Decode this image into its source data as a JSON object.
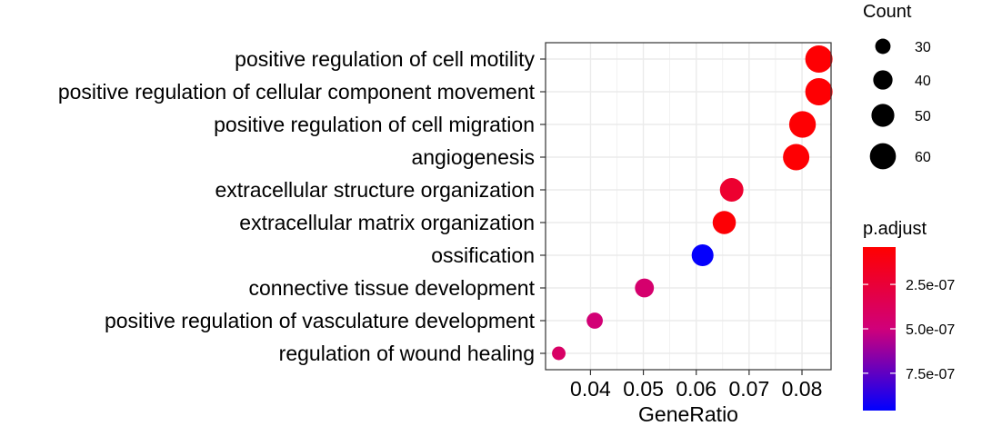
{
  "chart_data": {
    "type": "scatter",
    "title": "",
    "xlabel": "GeneRatio",
    "ylabel": "",
    "xlim": [
      0.0315,
      0.0855
    ],
    "x_ticks": [
      0.04,
      0.05,
      0.06,
      0.07,
      0.08
    ],
    "x_tick_labels": [
      "0.04",
      "0.05",
      "0.06",
      "0.07",
      "0.08"
    ],
    "grid": true,
    "categories": [
      "positive regulation of cell motility",
      "positive regulation of cellular component movement",
      "positive regulation of cell migration",
      "angiogenesis",
      "extracellular structure organization",
      "extracellular matrix organization",
      "ossification",
      "connective tissue development",
      "positive regulation of vasculature development",
      "regulation of wound healing"
    ],
    "points": [
      {
        "term": "positive regulation of cell motility",
        "gene_ratio": 0.0832,
        "count": 64,
        "p_adjust": 5e-08
      },
      {
        "term": "positive regulation of cellular component movement",
        "gene_ratio": 0.0832,
        "count": 64,
        "p_adjust": 5e-08
      },
      {
        "term": "positive regulation of cell migration",
        "gene_ratio": 0.0801,
        "count": 62,
        "p_adjust": 5e-08
      },
      {
        "term": "angiogenesis",
        "gene_ratio": 0.0789,
        "count": 61,
        "p_adjust": 5e-08
      },
      {
        "term": "extracellular structure organization",
        "gene_ratio": 0.0667,
        "count": 52,
        "p_adjust": 2.2e-07
      },
      {
        "term": "extracellular matrix organization",
        "gene_ratio": 0.0653,
        "count": 51,
        "p_adjust": 6e-08
      },
      {
        "term": "ossification",
        "gene_ratio": 0.0612,
        "count": 47,
        "p_adjust": 9.5e-07
      },
      {
        "term": "connective tissue development",
        "gene_ratio": 0.0502,
        "count": 39,
        "p_adjust": 4.5e-07
      },
      {
        "term": "positive regulation of vasculature development",
        "gene_ratio": 0.0408,
        "count": 32,
        "p_adjust": 4.8e-07
      },
      {
        "term": "regulation of wound healing",
        "gene_ratio": 0.034,
        "count": 26,
        "p_adjust": 4.2e-07
      }
    ],
    "legend": {
      "placement": "right",
      "size_title": "Count",
      "size_values": [
        30,
        40,
        50,
        60
      ],
      "size_labels": [
        "30",
        "40",
        "50",
        "60"
      ],
      "color_title": "p.adjust",
      "color_domain": [
        4e-08,
        9.6e-07
      ],
      "color_ticks": [
        2.5e-07,
        5e-07,
        7.5e-07
      ],
      "color_tick_labels": [
        "2.5e-07",
        "5.0e-07",
        "7.5e-07"
      ],
      "color_low": "#ff0000",
      "color_high": "#0000ff"
    },
    "colors": {
      "panel_border": "#333333",
      "grid": "#ebebeb",
      "axis_text": "#000000",
      "legend_text": "#000000"
    }
  }
}
